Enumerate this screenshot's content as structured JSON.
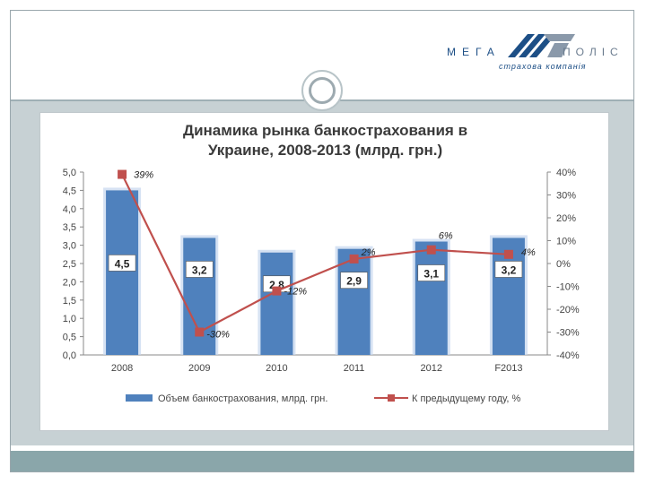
{
  "header": {
    "logo_left": "МЕГА",
    "logo_right": "ПОЛІС",
    "logo_subtitle": "страхова компанія"
  },
  "colors": {
    "bar": "#4f81bd",
    "line": "#c0504d",
    "band": "#c7d1d4",
    "footer": "#8aa6aa"
  },
  "chart_data": {
    "type": "bar",
    "title_line1": "Динамика рынка банкострахования в",
    "title_line2": "Украине, 2008-2013 (млрд. грн.)",
    "categories": [
      "2008",
      "2009",
      "2010",
      "2011",
      "2012",
      "F2013"
    ],
    "left_axis_ticks": [
      "0,0",
      "0,5",
      "1,0",
      "1,5",
      "2,0",
      "2,5",
      "3,0",
      "3,5",
      "4,0",
      "4,5",
      "5,0"
    ],
    "right_axis_ticks": [
      "-40%",
      "-30%",
      "-20%",
      "-10%",
      "0%",
      "10%",
      "20%",
      "30%",
      "40%"
    ],
    "ylim_left": [
      0,
      5
    ],
    "ylim_right": [
      -40,
      40
    ],
    "grid": false,
    "legend_position": "bottom",
    "series": [
      {
        "name": "Объем банкострахования, млрд. грн.",
        "type": "bar",
        "values": [
          4.5,
          3.2,
          2.8,
          2.9,
          3.1,
          3.2
        ],
        "labels": [
          "4,5",
          "3,2",
          "2,8",
          "2,9",
          "3,1",
          "3,2"
        ]
      },
      {
        "name": "К предыдущему году, %",
        "type": "line",
        "axis": "right",
        "values": [
          39,
          -30,
          -12,
          2,
          6,
          4
        ],
        "labels": [
          "39%",
          "-30%",
          "-12%",
          "2%",
          "6%",
          "4%"
        ]
      }
    ]
  }
}
